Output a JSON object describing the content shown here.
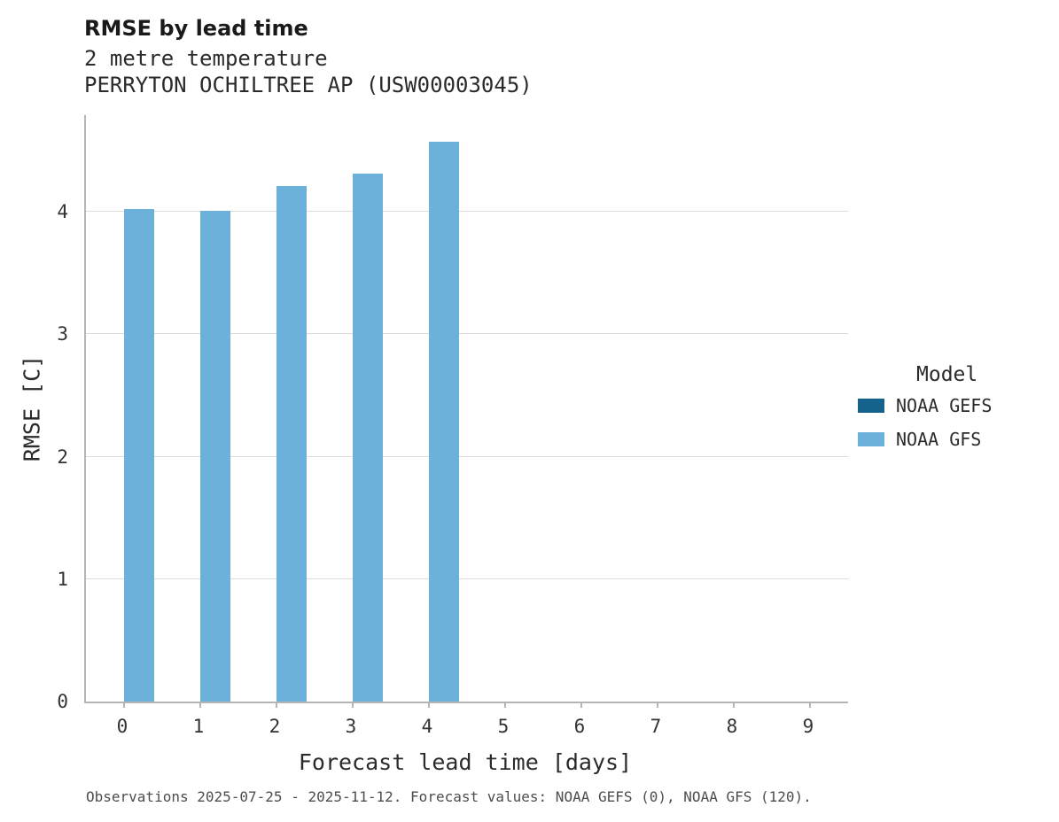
{
  "chart_data": {
    "type": "bar",
    "title": "RMSE by lead time",
    "subtitle_variable": "2 metre temperature",
    "subtitle_station": "PERRYTON OCHILTREE AP (USW00003045)",
    "xlabel": "Forecast lead time [days]",
    "ylabel": "RMSE [C]",
    "categories": [
      "0",
      "1",
      "2",
      "3",
      "4",
      "5",
      "6",
      "7",
      "8",
      "9"
    ],
    "series": [
      {
        "name": "NOAA GEFS",
        "color": "#15638d",
        "values": [
          null,
          null,
          null,
          null,
          null,
          null,
          null,
          null,
          null,
          null
        ]
      },
      {
        "name": "NOAA GFS",
        "color": "#6cb1d9",
        "values": [
          4.02,
          4.01,
          4.21,
          4.31,
          4.57,
          null,
          null,
          null,
          null,
          null
        ]
      }
    ],
    "ylim": [
      0,
      4.79
    ],
    "yticks": [
      0,
      1,
      2,
      3,
      4
    ],
    "grid": true,
    "legend_title": "Model",
    "legend_position": "right",
    "caption": "Observations 2025-07-25 - 2025-11-12. Forecast values: NOAA GEFS (0), NOAA GFS (120)."
  },
  "colors": {
    "gridline": "#dcdcdc",
    "axis": "#b5b5b5",
    "background": "#ffffff"
  }
}
